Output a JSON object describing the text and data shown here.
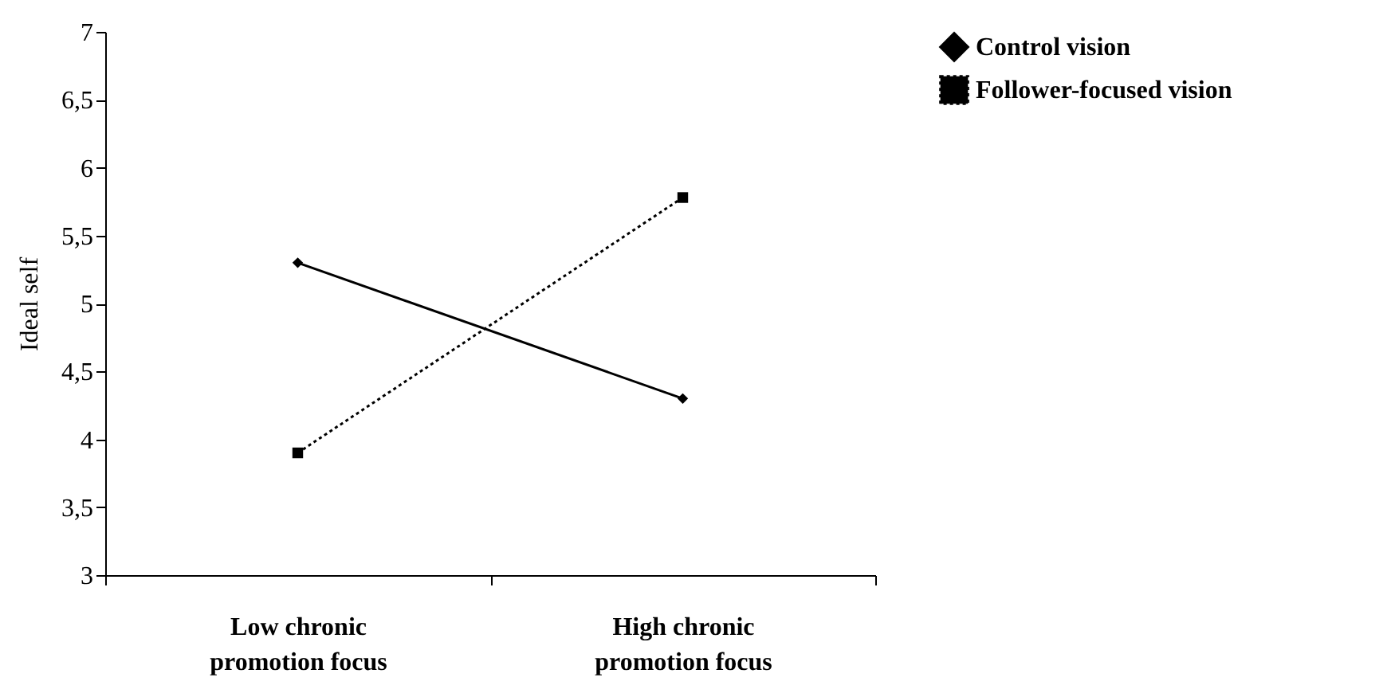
{
  "chart_data": {
    "type": "line",
    "ylabel": "Ideal self",
    "categories": [
      "Low chronic promotion focus",
      "High chronic promotion focus"
    ],
    "series": [
      {
        "name": "Control vision",
        "color": "#000000",
        "values": [
          5.3,
          4.3
        ],
        "marker": "diamond",
        "line_style": "solid"
      },
      {
        "name": "Follower-focused vision",
        "color": "#000000",
        "values": [
          3.9,
          5.78
        ],
        "marker": "square",
        "line_style": "dotted"
      }
    ],
    "ylim": [
      3,
      7
    ],
    "yticks": [
      3,
      {
        "value": 3.5,
        "label": "3,5"
      },
      4,
      {
        "value": 4.5,
        "label": "4,5"
      },
      5,
      {
        "value": 5.5,
        "label": "5,5"
      },
      6,
      {
        "value": 6.5,
        "label": "6,5"
      },
      7
    ],
    "grid": false,
    "legend": "right"
  }
}
